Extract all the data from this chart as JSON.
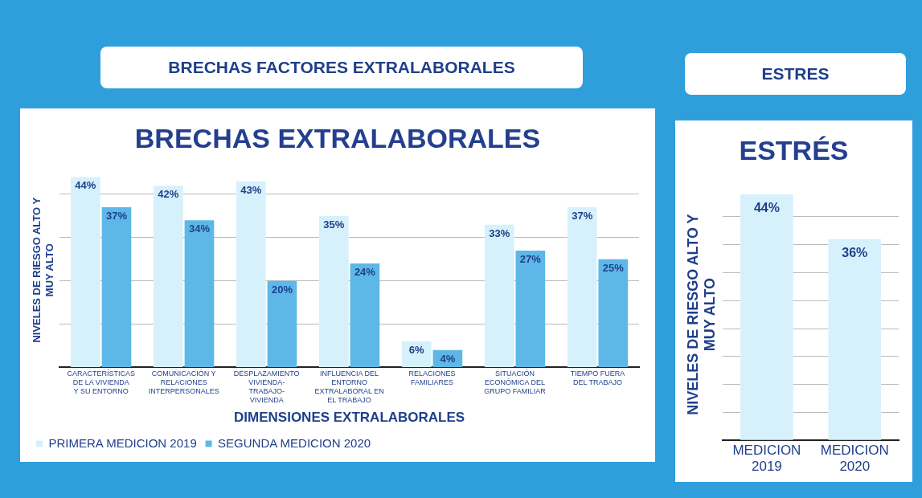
{
  "chart_data": [
    {
      "type": "bar",
      "subtitle": "BRECHAS  FACTORES EXTRALABORALES",
      "title": "BRECHAS EXTRALABORALES",
      "xlabel": "DIMENSIONES EXTRALABORALES",
      "ylabel": "NIVELES DE RIESGO ALTO Y MUY ALTO",
      "categories": [
        "CARACTERÍSTICAS DE LA VIVIENDA Y SU ENTORNO",
        "COMUNICACIÓN Y RELACIONES INTERPERSONALES",
        "DESPLAZAMIENTO VIVIENDA- TRABAJO- VIVIENDA",
        "INFLUENCIA DEL ENTORNO EXTRALABORAL EN EL TRABAJO",
        "RELACIONES FAMILIARES",
        "SITUACIÓN ECONÓMICA DEL GRUPO FAMILIAR",
        "TIEMPO FUERA DEL TRABAJO"
      ],
      "series": [
        {
          "name": "PRIMERA MEDICION 2019",
          "color": "#d6f1fb",
          "values": [
            44,
            42,
            43,
            35,
            6,
            33,
            37
          ],
          "value_labels": [
            "44%",
            "42%",
            "43%",
            "35%",
            "6%",
            "33%",
            "37%"
          ]
        },
        {
          "name": "SEGUNDA MEDICION 2020",
          "color": "#5db8e8",
          "values": [
            37,
            34,
            20,
            24,
            4,
            27,
            25
          ],
          "value_labels": [
            "37%",
            "34%",
            "20%",
            "24%",
            "4%",
            "27%",
            "25%"
          ]
        }
      ],
      "yticks": [
        {
          "value": 0,
          "label": null
        },
        {
          "value": 10,
          "label": null
        },
        {
          "value": 20,
          "label": null
        },
        {
          "value": 30,
          "label": null
        },
        {
          "value": 40,
          "label": null
        }
      ],
      "tick_labels": "x",
      "grid": "y",
      "legend": "bottom left"
    },
    {
      "type": "bar",
      "subtitle": "ESTRES",
      "title": "ESTRÉS",
      "ylabel": "NIVELES DE RIESGO ALTO Y MUY ALTO",
      "categories": [
        "MEDICION 2019",
        "MEDICION 2020"
      ],
      "values": [
        44,
        36
      ],
      "colors": [
        "#d6f1fb",
        "#d6f1fb"
      ],
      "value_labels": [
        "44%",
        "36%"
      ],
      "yticks": [
        {
          "value": 0,
          "label": null
        },
        {
          "value": 5,
          "label": null
        },
        {
          "value": 10,
          "label": null
        },
        {
          "value": 15,
          "label": null
        },
        {
          "value": 20,
          "label": null
        },
        {
          "value": 25,
          "label": null
        },
        {
          "value": 30,
          "label": null
        },
        {
          "value": 35,
          "label": null
        },
        {
          "value": 40,
          "label": null
        }
      ],
      "tick_labels": "x",
      "grid": "y",
      "legend": false
    }
  ]
}
